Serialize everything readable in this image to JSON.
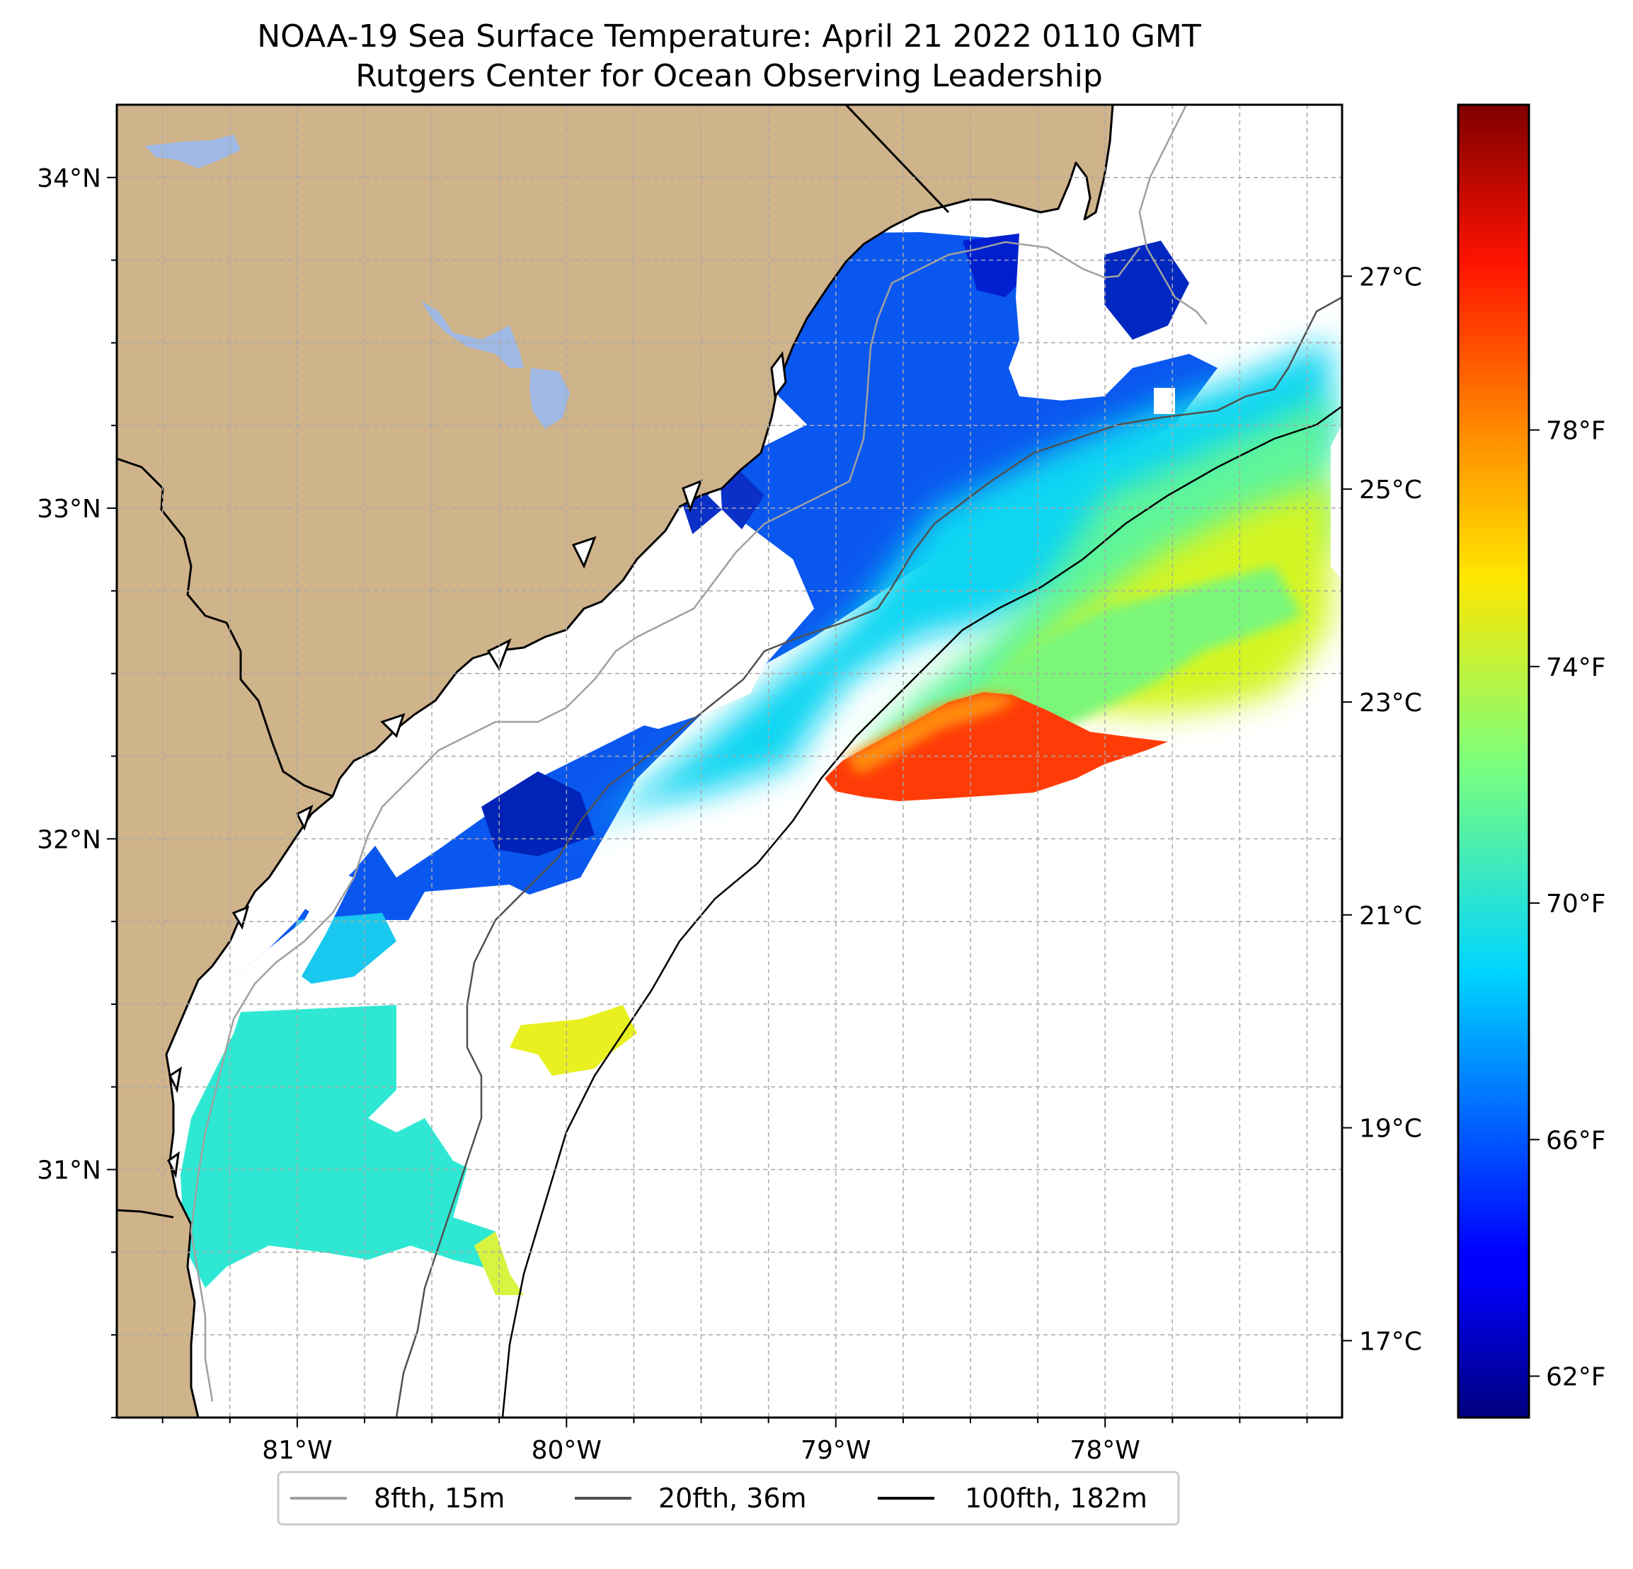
{
  "title": {
    "line1": "NOAA-19 Sea Surface Temperature: April 21 2022 0110 GMT",
    "line2": "Rutgers Center for Ocean Observing Leadership"
  },
  "map": {
    "lon_range": [
      -81.67,
      -77.12
    ],
    "lat_range": [
      30.25,
      34.22
    ],
    "lon_ticks": [
      {
        "value": -81,
        "label": "81°W"
      },
      {
        "value": -80,
        "label": "80°W"
      },
      {
        "value": -79,
        "label": "79°W"
      },
      {
        "value": -78,
        "label": "78°W"
      }
    ],
    "lat_ticks": [
      {
        "value": 31,
        "label": "31°N"
      },
      {
        "value": 32,
        "label": "32°N"
      },
      {
        "value": 33,
        "label": "33°N"
      },
      {
        "value": 34,
        "label": "34°N"
      }
    ],
    "colors": {
      "land": "#cfb38a",
      "lakes": "#9fb8e4",
      "coast": "#000000",
      "grid": "#a9a9a9"
    }
  },
  "colorbar": {
    "colormap": "jet",
    "celsius_ticks": [
      {
        "value": 17,
        "label": "17°C"
      },
      {
        "value": 19,
        "label": "19°C"
      },
      {
        "value": 21,
        "label": "21°C"
      },
      {
        "value": 23,
        "label": "23°C"
      },
      {
        "value": 25,
        "label": "25°C"
      },
      {
        "value": 27,
        "label": "27°C"
      }
    ],
    "fahrenheit_ticks": [
      {
        "value": 62,
        "label": "62°F"
      },
      {
        "value": 66,
        "label": "66°F"
      },
      {
        "value": 70,
        "label": "70°F"
      },
      {
        "value": 74,
        "label": "74°F"
      },
      {
        "value": 78,
        "label": "78°F"
      }
    ],
    "f_range": [
      61.3,
      83.5
    ]
  },
  "legend": {
    "position": "bottom-center",
    "items": [
      {
        "label": "8fth, 15m",
        "color": "#a0a0a0"
      },
      {
        "label": "20fth, 36m",
        "color": "#505050"
      },
      {
        "label": "100fth, 182m",
        "color": "#000000"
      }
    ]
  }
}
